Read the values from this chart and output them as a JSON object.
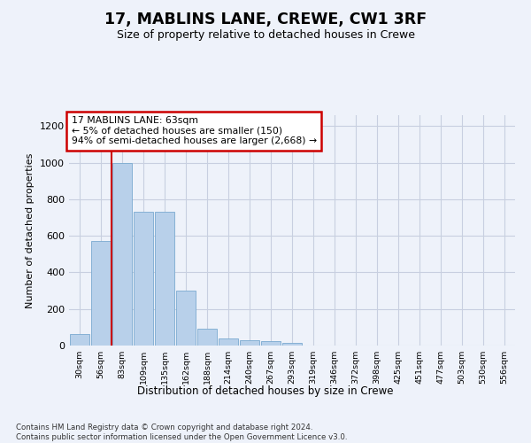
{
  "title": "17, MABLINS LANE, CREWE, CW1 3RF",
  "subtitle": "Size of property relative to detached houses in Crewe",
  "xlabel": "Distribution of detached houses by size in Crewe",
  "ylabel": "Number of detached properties",
  "bar_values": [
    62,
    570,
    1000,
    730,
    730,
    300,
    90,
    40,
    28,
    25,
    15,
    0,
    0,
    0,
    0,
    0,
    0,
    0,
    0,
    0,
    0
  ],
  "bar_labels": [
    "30sqm",
    "56sqm",
    "83sqm",
    "109sqm",
    "135sqm",
    "162sqm",
    "188sqm",
    "214sqm",
    "240sqm",
    "267sqm",
    "293sqm",
    "319sqm",
    "346sqm",
    "372sqm",
    "398sqm",
    "425sqm",
    "451sqm",
    "477sqm",
    "503sqm",
    "530sqm",
    "556sqm"
  ],
  "bar_color": "#b8d0ea",
  "bar_edge_color": "#7aaad0",
  "vline_x": 1.5,
  "vline_color": "#cc0000",
  "annotation_text": "17 MABLINS LANE: 63sqm\n← 5% of detached houses are smaller (150)\n94% of semi-detached houses are larger (2,668) →",
  "annotation_box_edgecolor": "#cc0000",
  "ylim": [
    0,
    1260
  ],
  "yticks": [
    0,
    200,
    400,
    600,
    800,
    1000,
    1200
  ],
  "footer": "Contains HM Land Registry data © Crown copyright and database right 2024.\nContains public sector information licensed under the Open Government Licence v3.0.",
  "background_color": "#eef2fa",
  "plot_background": "#eef2fa",
  "grid_color": "#c8cfe0"
}
